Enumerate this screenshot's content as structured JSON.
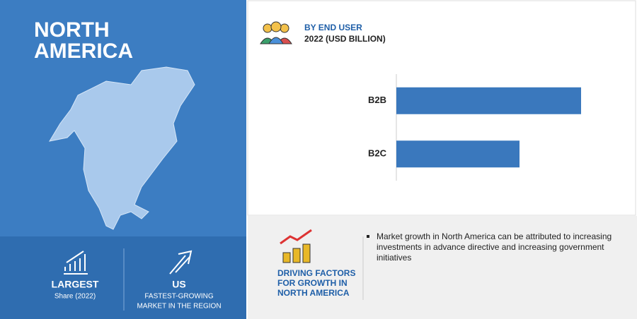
{
  "region": {
    "title_lines": [
      "NORTH",
      "AMERICA"
    ]
  },
  "stats": [
    {
      "value": "LARGEST",
      "label_lines": [
        "Share (2022)"
      ]
    },
    {
      "value": "US",
      "label_lines": [
        "FASTEST-GROWING",
        "MARKET IN THE REGION"
      ]
    }
  ],
  "chart_data": {
    "type": "bar",
    "orientation": "horizontal",
    "title": "BY END USER",
    "subtitle": "2022 (USD BILLION)",
    "categories": [
      "B2B",
      "B2C"
    ],
    "values": [
      3.0,
      2.0
    ],
    "color": "#3a78bd"
  },
  "driving_factors": {
    "heading_lines": [
      "DRIVING FACTORS",
      "FOR GROWTH IN",
      "NORTH AMERICA"
    ],
    "bullets": [
      "Market growth in North America can be attributed to increasing investments in advance directive and increasing government initiatives"
    ]
  }
}
